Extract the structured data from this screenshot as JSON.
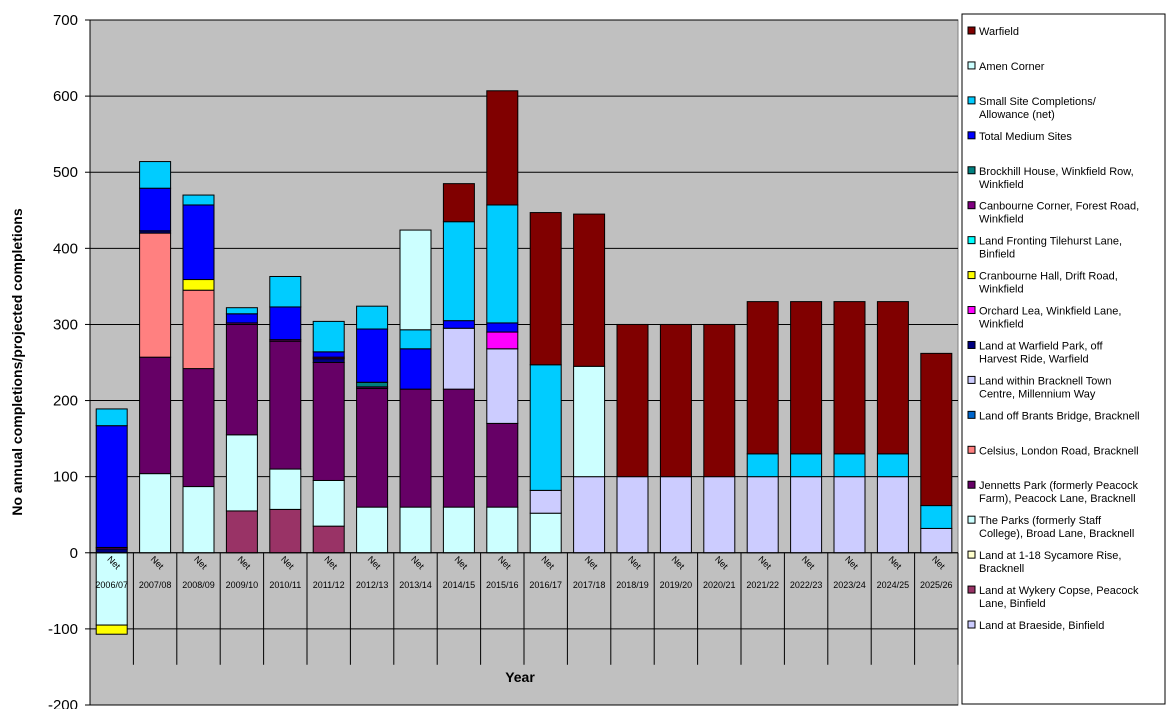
{
  "chart_data": {
    "type": "bar",
    "stacked": true,
    "xlabel": "Year",
    "ylabel": "No annual completions/projected completions",
    "ylim": [
      -200,
      700
    ],
    "yticks": [
      -200,
      -100,
      0,
      100,
      200,
      300,
      400,
      500,
      600,
      700
    ],
    "categories": [
      "2006/07",
      "2007/08",
      "2008/09",
      "2009/10",
      "2010/11",
      "2011/12",
      "2012/13",
      "2013/14",
      "2014/15",
      "2015/16",
      "2016/17",
      "2017/18",
      "2018/19",
      "2019/20",
      "2020/21",
      "2021/22",
      "2022/23",
      "2023/24",
      "2024/25",
      "2025/26"
    ],
    "sub_label": "Net",
    "plot_background": "#c0c0c0",
    "grid": true,
    "legend_position": "right",
    "series": [
      {
        "name": "Land at Braeside, Binfield",
        "color": "#ccccff",
        "values": [
          0,
          0,
          0,
          0,
          0,
          0,
          0,
          0,
          0,
          0,
          0,
          100,
          100,
          100,
          100,
          100,
          100,
          100,
          100,
          32
        ]
      },
      {
        "name": "Land at Wykery Copse, Peacock Lane, Binfield",
        "color": "#993366",
        "values": [
          0,
          0,
          0,
          55,
          57,
          35,
          0,
          0,
          0,
          0,
          0,
          0,
          0,
          0,
          0,
          0,
          0,
          0,
          0,
          0
        ]
      },
      {
        "name": "Land at 1-18 Sycamore Rise, Bracknell",
        "color": "#ffffcc",
        "values": [
          0,
          0,
          0,
          0,
          0,
          0,
          0,
          0,
          0,
          0,
          0,
          0,
          0,
          0,
          0,
          0,
          0,
          0,
          0,
          0
        ]
      },
      {
        "name": "The Parks (formerly Staff College), Broad Lane, Bracknell",
        "color": "#ccffff",
        "values": [
          -95,
          104,
          87,
          100,
          53,
          60,
          60,
          60,
          60,
          60,
          52,
          145,
          0,
          0,
          0,
          0,
          0,
          0,
          0,
          0
        ]
      },
      {
        "name": "Jennetts Park (formerly Peacock Farm), Peacock Lane, Bracknell",
        "color": "#660066",
        "values": [
          0,
          153,
          155,
          145,
          168,
          155,
          156,
          155,
          155,
          110,
          0,
          0,
          0,
          0,
          0,
          0,
          0,
          0,
          0,
          0
        ]
      },
      {
        "name": "Celsius, London Road, Bracknell",
        "color": "#ff8080",
        "values": [
          0,
          163,
          103,
          0,
          0,
          0,
          0,
          0,
          0,
          0,
          0,
          0,
          0,
          0,
          0,
          0,
          0,
          0,
          0,
          0
        ]
      },
      {
        "name": "Land off Brants Bridge, Bracknell",
        "color": "#0066cc",
        "values": [
          0,
          0,
          0,
          0,
          0,
          0,
          0,
          0,
          0,
          0,
          0,
          0,
          0,
          0,
          0,
          0,
          0,
          0,
          0,
          0
        ]
      },
      {
        "name": "Land within Bracknell Town Centre, Millennium Way",
        "color": "#ccccff",
        "values": [
          0,
          0,
          0,
          0,
          0,
          0,
          0,
          0,
          80,
          98,
          30,
          0,
          0,
          0,
          0,
          0,
          0,
          0,
          0,
          0
        ]
      },
      {
        "name": "Land at Warfield Park, off Harvest Ride, Warfield",
        "color": "#000080",
        "values": [
          5,
          3,
          0,
          0,
          0,
          5,
          0,
          0,
          0,
          0,
          0,
          0,
          0,
          0,
          0,
          0,
          0,
          0,
          0,
          0
        ]
      },
      {
        "name": "Orchard Lea, Winkfield Lane, Winkfield",
        "color": "#ff00ff",
        "values": [
          0,
          0,
          0,
          0,
          0,
          0,
          0,
          0,
          0,
          22,
          0,
          0,
          0,
          0,
          0,
          0,
          0,
          0,
          0,
          0
        ]
      },
      {
        "name": "Cranbourne Hall, Drift Road, Winkfield",
        "color": "#ffff00",
        "values": [
          -12,
          0,
          14,
          0,
          0,
          0,
          0,
          0,
          0,
          0,
          0,
          0,
          0,
          0,
          0,
          0,
          0,
          0,
          0,
          0
        ]
      },
      {
        "name": "Land Fronting Tilehurst Lane, Binfield",
        "color": "#00ffff",
        "values": [
          0,
          0,
          0,
          0,
          0,
          0,
          0,
          0,
          0,
          0,
          0,
          0,
          0,
          0,
          0,
          0,
          0,
          0,
          0,
          0
        ]
      },
      {
        "name": "Canbourne Corner, Forest Road, Winkfield",
        "color": "#800080",
        "values": [
          2,
          0,
          0,
          2,
          2,
          2,
          2,
          0,
          0,
          0,
          0,
          0,
          0,
          0,
          0,
          0,
          0,
          0,
          0,
          0
        ]
      },
      {
        "name": "Brockhill House, Winkfield Row, Winkfield",
        "color": "#008080",
        "values": [
          0,
          0,
          0,
          0,
          0,
          0,
          6,
          0,
          0,
          0,
          0,
          0,
          0,
          0,
          0,
          0,
          0,
          0,
          0,
          0
        ]
      },
      {
        "name": "Total Medium Sites",
        "color": "#0000ff",
        "values": [
          160,
          56,
          98,
          12,
          43,
          7,
          70,
          53,
          10,
          12,
          0,
          0,
          0,
          0,
          0,
          0,
          0,
          0,
          0,
          0
        ]
      },
      {
        "name": "Small Site Completions/ Allowance (net)",
        "color": "#00ccff",
        "values": [
          22,
          35,
          13,
          8,
          40,
          40,
          30,
          25,
          130,
          155,
          165,
          0,
          0,
          0,
          0,
          30,
          30,
          30,
          30,
          30
        ]
      },
      {
        "name": "Amen Corner",
        "color": "#ccffff",
        "values": [
          0,
          0,
          0,
          0,
          0,
          0,
          0,
          131,
          0,
          0,
          0,
          0,
          0,
          0,
          0,
          0,
          0,
          0,
          0,
          0
        ]
      },
      {
        "name": "Warfield",
        "color": "#800000",
        "values": [
          0,
          0,
          0,
          0,
          0,
          0,
          0,
          0,
          50,
          150,
          200,
          200,
          200,
          200,
          200,
          200,
          200,
          200,
          200,
          200
        ]
      }
    ],
    "legend_order": [
      "Warfield",
      "Amen Corner",
      "Small Site Completions/ Allowance (net)",
      "Total Medium Sites",
      "Brockhill House, Winkfield Row, Winkfield",
      "Canbourne Corner, Forest Road, Winkfield",
      "Land Fronting Tilehurst Lane, Binfield",
      "Cranbourne Hall, Drift Road, Winkfield",
      "Orchard Lea, Winkfield Lane, Winkfield",
      "Land at Warfield Park, off Harvest Ride, Warfield",
      "Land within Bracknell Town Centre, Millennium Way",
      "Land off Brants Bridge, Bracknell",
      "Celsius, London Road, Bracknell",
      "Jennetts Park (formerly Peacock Farm), Peacock Lane, Bracknell",
      "The Parks (formerly Staff College), Broad Lane, Bracknell",
      "Land at 1-18 Sycamore Rise, Bracknell",
      "Land at Wykery Copse, Peacock Lane, Binfield",
      "Land at Braeside, Binfield"
    ],
    "legend_lines": {
      "Warfield": [
        "Warfield"
      ],
      "Amen Corner": [
        "Amen Corner"
      ],
      "Small Site Completions/ Allowance (net)": [
        "Small Site Completions/",
        "Allowance (net)"
      ],
      "Total Medium Sites": [
        "Total Medium Sites"
      ],
      "Brockhill House, Winkfield Row, Winkfield": [
        "Brockhill House, Winkfield Row,",
        "Winkfield"
      ],
      "Canbourne Corner, Forest Road, Winkfield": [
        "Canbourne Corner, Forest Road,",
        "Winkfield"
      ],
      "Land Fronting Tilehurst Lane, Binfield": [
        "Land Fronting Tilehurst Lane,",
        "Binfield"
      ],
      "Cranbourne Hall, Drift Road, Winkfield": [
        "Cranbourne Hall, Drift Road,",
        "Winkfield"
      ],
      "Orchard Lea, Winkfield Lane, Winkfield": [
        "Orchard Lea, Winkfield Lane,",
        "Winkfield"
      ],
      "Land at Warfield Park, off Harvest Ride, Warfield": [
        "Land at Warfield Park, off",
        "Harvest Ride, Warfield"
      ],
      "Land within Bracknell Town Centre, Millennium Way": [
        "Land within Bracknell Town",
        "Centre, Millennium Way"
      ],
      "Land off Brants Bridge, Bracknell": [
        "Land off Brants Bridge, Bracknell"
      ],
      "Celsius, London Road, Bracknell": [
        "Celsius, London Road, Bracknell"
      ],
      "Jennetts Park (formerly Peacock Farm), Peacock Lane, Bracknell": [
        "Jennetts Park (formerly Peacock",
        "Farm), Peacock Lane, Bracknell"
      ],
      "The Parks (formerly Staff College), Broad Lane, Bracknell": [
        "The Parks (formerly Staff",
        "College), Broad Lane, Bracknell"
      ],
      "Land at 1-18 Sycamore Rise, Bracknell": [
        "Land at 1-18 Sycamore Rise,",
        "Bracknell"
      ],
      "Land at Wykery Copse, Peacock Lane, Binfield": [
        "Land at Wykery Copse, Peacock",
        "Lane, Binfield"
      ],
      "Land at Braeside, Binfield": [
        "Land at Braeside, Binfield"
      ]
    }
  }
}
